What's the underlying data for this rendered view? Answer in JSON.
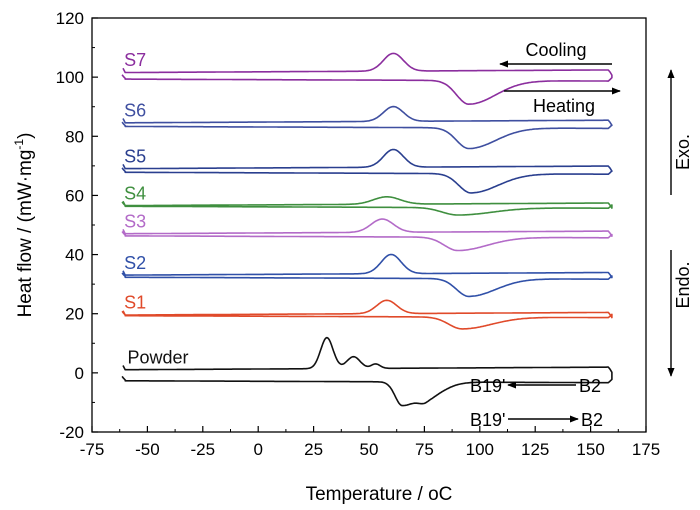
{
  "chart_data": {
    "type": "line",
    "xlabel": "Temperature / ",
    "xlabel_unit": "oC",
    "ylabel": "Heat flow / (mW·mg",
    "ylabel_sup": "-1",
    "ylabel_close": ")",
    "xlim": [
      -75,
      175
    ],
    "ylim": [
      -20,
      120
    ],
    "xticks": [
      -75,
      -50,
      -25,
      0,
      25,
      50,
      75,
      100,
      125,
      150,
      175
    ],
    "yticks": [
      -20,
      0,
      20,
      40,
      60,
      80,
      100,
      120
    ],
    "grid": false,
    "annotations": {
      "cooling": "Cooling",
      "heating": "Heating",
      "b19_b2_top_left": "B19'",
      "b19_b2_top_right": "B2",
      "b19_b2_bottom_left": "B19'",
      "b19_b2_bottom_right": "B2",
      "exo": "Exo.",
      "endo": "Endo."
    },
    "series": [
      {
        "name": "S7",
        "color": "#8B2E9E",
        "cool_base": 102,
        "heat_base": 99,
        "peaks": [
          {
            "x": 61,
            "h": 6,
            "w": 4.5
          }
        ],
        "valleys": [
          {
            "x": 95,
            "h": 8,
            "w": 5.5
          }
        ]
      },
      {
        "name": "S6",
        "color": "#3F4FA0",
        "cool_base": 85,
        "heat_base": 83,
        "peaks": [
          {
            "x": 61,
            "h": 5,
            "w": 4.5
          }
        ],
        "valleys": [
          {
            "x": 95,
            "h": 7,
            "w": 5.5
          }
        ]
      },
      {
        "name": "S5",
        "color": "#2A3F8F",
        "cool_base": 69.5,
        "heat_base": 67.5,
        "peaks": [
          {
            "x": 61,
            "h": 6,
            "w": 4.5
          }
        ],
        "valleys": [
          {
            "x": 96,
            "h": 6.5,
            "w": 5.5
          }
        ]
      },
      {
        "name": "S4",
        "color": "#3F8F3F",
        "cool_base": 57,
        "heat_base": 56,
        "peaks": [
          {
            "x": 58,
            "h": 2.5,
            "w": 6
          }
        ],
        "valleys": [
          {
            "x": 90,
            "h": 2.5,
            "w": 7
          }
        ]
      },
      {
        "name": "S3",
        "color": "#B36BC8",
        "cool_base": 47.5,
        "heat_base": 46,
        "peaks": [
          {
            "x": 56,
            "h": 4.5,
            "w": 5
          }
        ],
        "valleys": [
          {
            "x": 90,
            "h": 4.5,
            "w": 6
          }
        ]
      },
      {
        "name": "S2",
        "color": "#3050A8",
        "cool_base": 33.5,
        "heat_base": 32,
        "peaks": [
          {
            "x": 60,
            "h": 6.5,
            "w": 4.5
          }
        ],
        "valleys": [
          {
            "x": 95,
            "h": 6,
            "w": 5.5
          }
        ]
      },
      {
        "name": "S1",
        "color": "#E04A2A",
        "cool_base": 20,
        "heat_base": 19,
        "peaks": [
          {
            "x": 58,
            "h": 4.5,
            "w": 4.5
          }
        ],
        "valleys": [
          {
            "x": 92,
            "h": 4,
            "w": 6
          }
        ]
      },
      {
        "name": "Powder",
        "color": "#111111",
        "cool_base": 1.5,
        "heat_base": -3,
        "peaks": [
          {
            "x": 31,
            "h": 10.5,
            "w": 2.8
          },
          {
            "x": 43,
            "h": 4,
            "w": 3
          },
          {
            "x": 53,
            "h": 1.5,
            "w": 2
          }
        ],
        "valleys": [
          {
            "x": 65,
            "h": 8,
            "w": 3.2
          },
          {
            "x": 76,
            "h": 4.5,
            "w": 3.5
          }
        ]
      }
    ]
  }
}
